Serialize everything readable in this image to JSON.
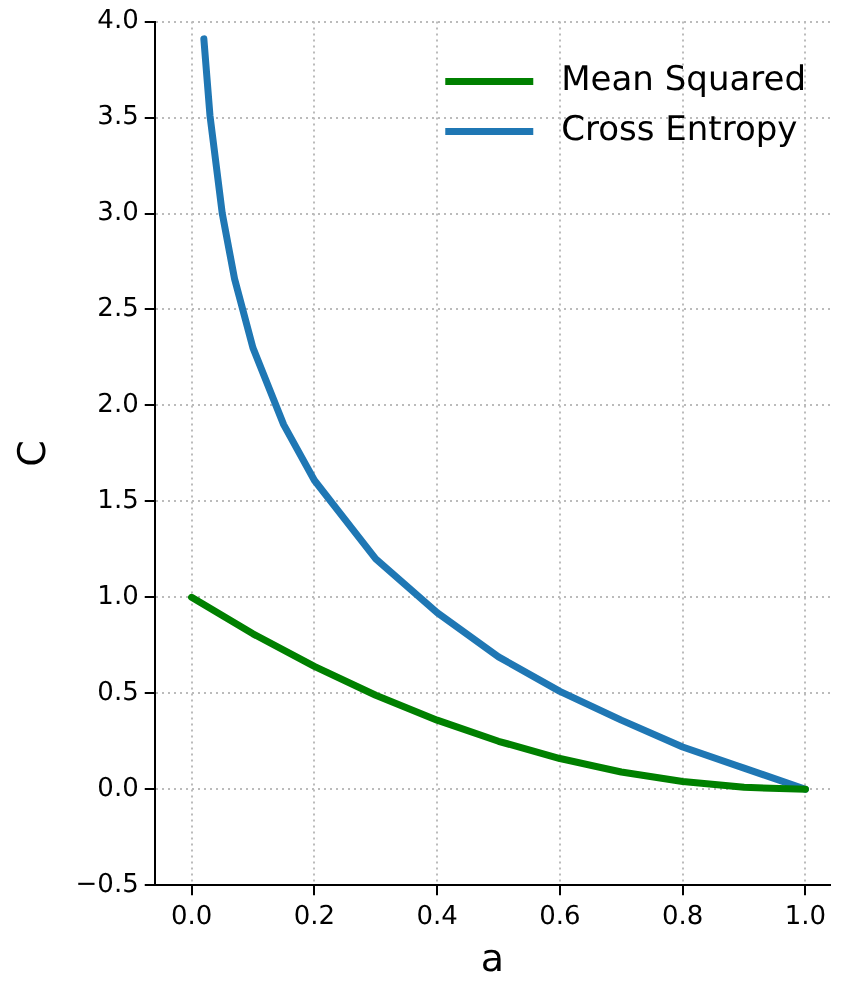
{
  "chart_data": {
    "type": "line",
    "xlabel": "a",
    "ylabel": "C",
    "xlim": [
      -0.06,
      1.04
    ],
    "xticks": [
      {
        "value": 0,
        "label": "0.0"
      },
      {
        "value": 0.2,
        "label": "0.2"
      },
      {
        "value": 0.4,
        "label": "0.4"
      },
      {
        "value": 0.6,
        "label": "0.6"
      },
      {
        "value": 0.8,
        "label": "0.8"
      },
      {
        "value": 1,
        "label": "1.0"
      }
    ],
    "ylim": [
      -0.5,
      4.0
    ],
    "yticks": [
      {
        "value": -0.5,
        "label": "−0.5"
      },
      {
        "value": 0,
        "label": "0.0"
      },
      {
        "value": 0.5,
        "label": "0.5"
      },
      {
        "value": 1,
        "label": "1.0"
      },
      {
        "value": 1.5,
        "label": "1.5"
      },
      {
        "value": 2,
        "label": "2.0"
      },
      {
        "value": 2.5,
        "label": "2.5"
      },
      {
        "value": 3,
        "label": "3.0"
      },
      {
        "value": 3.5,
        "label": "3.5"
      },
      {
        "value": 4,
        "label": "4.0"
      }
    ],
    "grid": true,
    "legend": "top right",
    "marker": "none",
    "line_style": "solid",
    "series": [
      {
        "name": "Mean Squared",
        "color": "#008000",
        "x": [
          0,
          0.1,
          0.2,
          0.3,
          0.4,
          0.5,
          0.6,
          0.7,
          0.8,
          0.9,
          1.0
        ],
        "values": [
          1,
          0.81,
          0.64,
          0.49,
          0.36,
          0.25,
          0.16,
          0.09,
          0.04,
          0.01,
          0
        ]
      },
      {
        "name": "Cross Entropy",
        "color": "#1f77b4",
        "x": [
          0.02,
          0.03,
          0.05,
          0.07,
          0.1,
          0.15,
          0.2,
          0.3,
          0.4,
          0.5,
          0.6,
          0.7,
          0.8,
          0.9,
          1.0
        ],
        "values": [
          3.91,
          3.51,
          3.0,
          2.66,
          2.3,
          1.9,
          1.61,
          1.2,
          0.92,
          0.69,
          0.51,
          0.36,
          0.22,
          0.11,
          0
        ]
      }
    ]
  }
}
